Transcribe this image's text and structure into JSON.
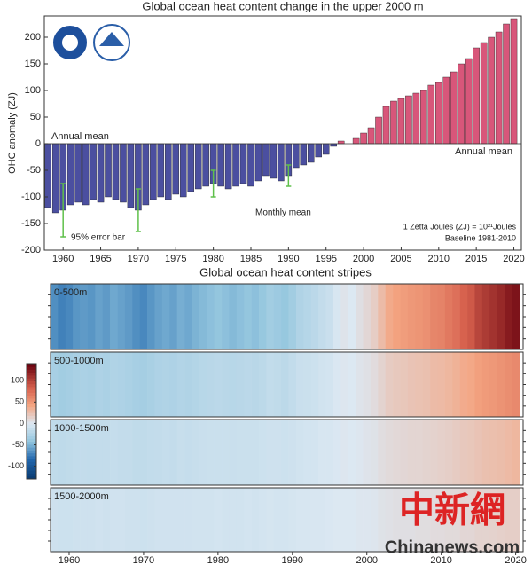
{
  "chart_data": [
    {
      "type": "bar",
      "title": "Global ocean heat content change in the upper 2000 m",
      "ylabel": "OHC anomaly (ZJ)",
      "x": [
        1958,
        1959,
        1960,
        1961,
        1962,
        1963,
        1964,
        1965,
        1966,
        1967,
        1968,
        1969,
        1970,
        1971,
        1972,
        1973,
        1974,
        1975,
        1976,
        1977,
        1978,
        1979,
        1980,
        1981,
        1982,
        1983,
        1984,
        1985,
        1986,
        1987,
        1988,
        1989,
        1990,
        1991,
        1992,
        1993,
        1994,
        1995,
        1996,
        1997,
        1998,
        1999,
        2000,
        2001,
        2002,
        2003,
        2004,
        2005,
        2006,
        2007,
        2008,
        2009,
        2010,
        2011,
        2012,
        2013,
        2014,
        2015,
        2016,
        2017,
        2018,
        2019,
        2020
      ],
      "values": [
        -120,
        -130,
        -125,
        -115,
        -110,
        -115,
        -105,
        -110,
        -100,
        -105,
        -110,
        -120,
        -125,
        -115,
        -105,
        -100,
        -105,
        -95,
        -100,
        -90,
        -85,
        -80,
        -75,
        -80,
        -85,
        -80,
        -75,
        -80,
        -70,
        -60,
        -65,
        -70,
        -60,
        -45,
        -40,
        -35,
        -25,
        -20,
        -5,
        5,
        0,
        10,
        20,
        30,
        50,
        70,
        80,
        85,
        90,
        95,
        100,
        110,
        115,
        125,
        135,
        150,
        160,
        180,
        190,
        200,
        210,
        225,
        235
      ],
      "colors": {
        "negative": "#4b4fa0",
        "positive": "#d8567a"
      },
      "error_bars": {
        "x": [
          1960,
          1970,
          1980,
          1990
        ],
        "errors": [
          50,
          40,
          25,
          20
        ],
        "color": "#5fc04a"
      },
      "xlim": [
        1957.5,
        2021
      ],
      "xticks": [
        1960,
        1965,
        1970,
        1975,
        1980,
        1985,
        1990,
        1995,
        2000,
        2005,
        2010,
        2015,
        2020
      ],
      "ylim": [
        -200,
        240
      ],
      "yticks": [
        -200,
        -150,
        -100,
        -50,
        0,
        50,
        100,
        150,
        200
      ],
      "annotations": {
        "annual_mean_negative": "Annual mean",
        "annual_mean_positive": "Annual mean",
        "monthly_mean": "Monthly mean",
        "error_bar": "95% error bar",
        "units": "1 Zetta Joules (ZJ) = 10²¹Joules",
        "baseline": "Baseline 1981-2010"
      }
    },
    {
      "type": "stripes",
      "title": "Global ocean heat content stripes",
      "x": [
        1958,
        1959,
        1960,
        1961,
        1962,
        1963,
        1964,
        1965,
        1966,
        1967,
        1968,
        1969,
        1970,
        1971,
        1972,
        1973,
        1974,
        1975,
        1976,
        1977,
        1978,
        1979,
        1980,
        1981,
        1982,
        1983,
        1984,
        1985,
        1986,
        1987,
        1988,
        1989,
        1990,
        1991,
        1992,
        1993,
        1994,
        1995,
        1996,
        1997,
        1998,
        1999,
        2000,
        2001,
        2002,
        2003,
        2004,
        2005,
        2006,
        2007,
        2008,
        2009,
        2010,
        2011,
        2012,
        2013,
        2014,
        2015,
        2016,
        2017,
        2018,
        2019,
        2020
      ],
      "series": [
        {
          "name": "0-500m",
          "values": [
            -66,
            -72,
            -69,
            -63,
            -61,
            -63,
            -58,
            -61,
            -55,
            -58,
            -61,
            -66,
            -69,
            -63,
            -58,
            -55,
            -58,
            -52,
            -55,
            -50,
            -47,
            -44,
            -41,
            -44,
            -47,
            -44,
            -41,
            -44,
            -39,
            -33,
            -36,
            -39,
            -33,
            -25,
            -22,
            -19,
            -14,
            -11,
            -3,
            3,
            0,
            6,
            11,
            17,
            28,
            39,
            44,
            47,
            50,
            52,
            55,
            61,
            63,
            69,
            74,
            83,
            88,
            99,
            105,
            110,
            116,
            124,
            129
          ]
        },
        {
          "name": "500-1000m",
          "values": [
            -30,
            -33,
            -31,
            -29,
            -28,
            -29,
            -26,
            -28,
            -25,
            -26,
            -28,
            -30,
            -31,
            -29,
            -26,
            -25,
            -26,
            -24,
            -25,
            -23,
            -21,
            -20,
            -19,
            -20,
            -21,
            -20,
            -19,
            -20,
            -18,
            -15,
            -16,
            -18,
            -15,
            -11,
            -10,
            -9,
            -6,
            -5,
            -1,
            1,
            0,
            3,
            5,
            8,
            13,
            18,
            20,
            21,
            23,
            24,
            25,
            28,
            29,
            31,
            34,
            38,
            40,
            45,
            48,
            50,
            53,
            56,
            59
          ]
        },
        {
          "name": "1000-1500m",
          "values": [
            -16,
            -17,
            -16,
            -15,
            -14,
            -15,
            -14,
            -14,
            -13,
            -14,
            -14,
            -16,
            -16,
            -15,
            -14,
            -13,
            -14,
            -12,
            -13,
            -12,
            -11,
            -10,
            -10,
            -10,
            -11,
            -10,
            -10,
            -10,
            -9,
            -8,
            -8,
            -9,
            -8,
            -6,
            -5,
            -5,
            -3,
            -3,
            -1,
            1,
            0,
            1,
            3,
            4,
            7,
            9,
            10,
            11,
            12,
            12,
            13,
            14,
            15,
            16,
            18,
            20,
            21,
            23,
            25,
            26,
            27,
            29,
            31
          ]
        },
        {
          "name": "1500-2000m",
          "values": [
            -8,
            -9,
            -9,
            -8,
            -8,
            -8,
            -7,
            -8,
            -7,
            -7,
            -8,
            -8,
            -9,
            -8,
            -7,
            -7,
            -7,
            -7,
            -7,
            -6,
            -6,
            -6,
            -5,
            -6,
            -6,
            -6,
            -5,
            -6,
            -5,
            -4,
            -5,
            -5,
            -4,
            -3,
            -3,
            -2,
            -2,
            -1,
            0,
            0,
            0,
            1,
            1,
            2,
            4,
            5,
            6,
            6,
            6,
            7,
            7,
            8,
            8,
            9,
            9,
            11,
            11,
            13,
            13,
            14,
            15,
            16,
            16
          ]
        }
      ],
      "colormap": "RdBu_r",
      "clim": [
        -130,
        140
      ],
      "cticks": [
        -100,
        -50,
        0,
        50,
        100
      ],
      "xlim": [
        1957.5,
        2021
      ],
      "xticks": [
        1960,
        1970,
        1980,
        1990,
        2000,
        2010,
        2020
      ]
    },
    {
      "watermark": [
        "中新網",
        "Chinanews.com"
      ]
    }
  ]
}
